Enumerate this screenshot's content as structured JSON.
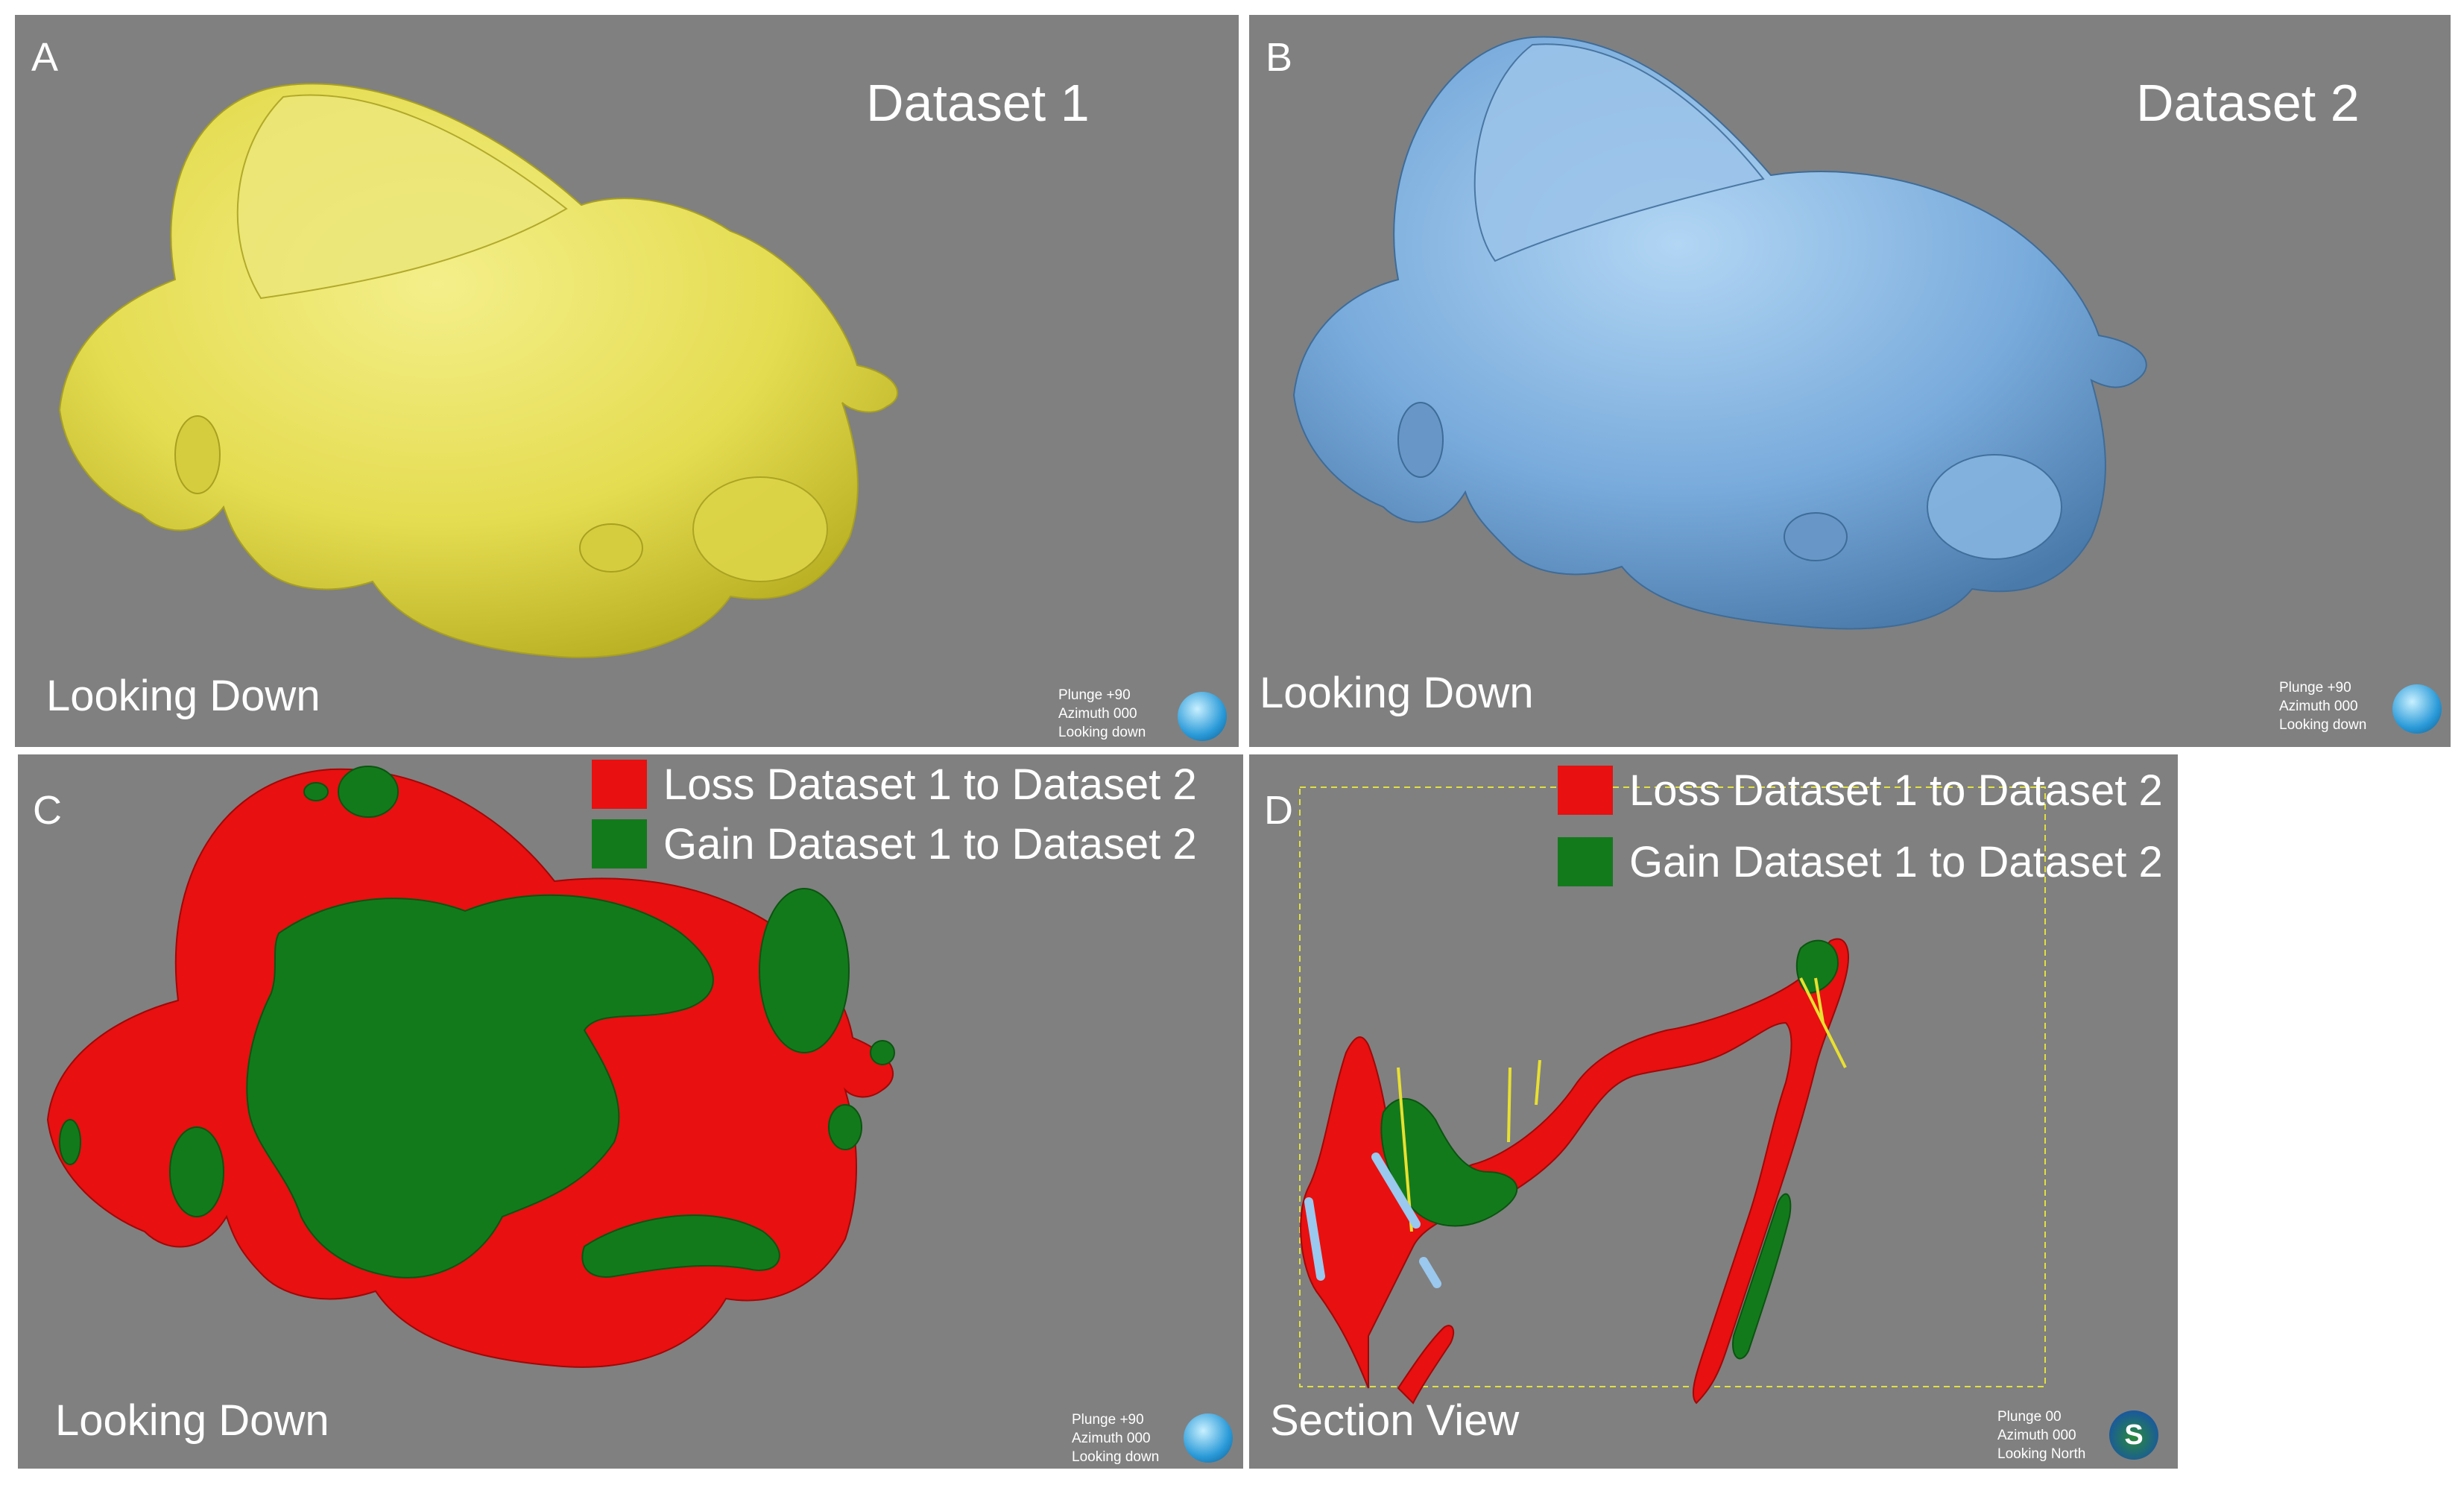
{
  "panels": {
    "A": {
      "letter": "A",
      "title": "Dataset 1",
      "view_label": "Looking Down",
      "orientation": {
        "plunge": "Plunge +90",
        "azimuth": "Azimuth 000",
        "looking": "Looking down"
      }
    },
    "B": {
      "letter": "B",
      "title": "Dataset 2",
      "view_label": "Looking Down",
      "orientation": {
        "plunge": "Plunge +90",
        "azimuth": "Azimuth 000",
        "looking": "Looking down"
      }
    },
    "C": {
      "letter": "C",
      "view_label": "Looking Down",
      "orientation": {
        "plunge": "Plunge +90",
        "azimuth": "Azimuth 000",
        "looking": "Looking down"
      }
    },
    "D": {
      "letter": "D",
      "view_label": "Section View",
      "compass_letter": "S",
      "orientation": {
        "plunge": "Plunge 00",
        "azimuth": "Azimuth 000",
        "looking": "Looking North"
      }
    }
  },
  "legend": {
    "loss": "Loss Dataset 1 to Dataset 2",
    "gain": "Gain Dataset 1 to Dataset 2"
  },
  "colors": {
    "background": "#808080",
    "dataset1_surface": "#e8e25a",
    "dataset2_surface": "#7fb0dc",
    "loss": "#e81010",
    "gain": "#137a1c",
    "drillhole": "#e8e030",
    "section_box": "#e0e040"
  }
}
